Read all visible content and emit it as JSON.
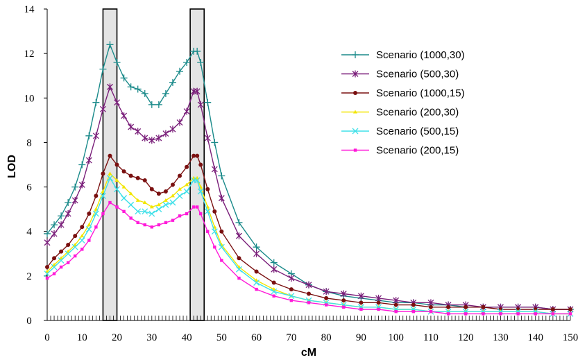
{
  "chart_data": {
    "type": "line",
    "title": "",
    "xlabel": "cM",
    "ylabel": "LOD",
    "xlim": [
      0,
      150
    ],
    "ylim": [
      0,
      14
    ],
    "x_ticks": [
      0,
      10,
      20,
      30,
      40,
      50,
      60,
      70,
      80,
      90,
      100,
      110,
      120,
      130,
      140,
      150
    ],
    "y_ticks": [
      0,
      2,
      4,
      6,
      8,
      10,
      12,
      14
    ],
    "grid": false,
    "legend_position": "top-right",
    "highlight_regions": [
      {
        "from": 16,
        "to": 20
      },
      {
        "from": 41,
        "to": 45
      }
    ],
    "x": [
      0,
      2,
      4,
      6,
      8,
      10,
      12,
      14,
      16,
      18,
      20,
      22,
      24,
      26,
      28,
      30,
      32,
      34,
      36,
      38,
      40,
      42,
      43,
      44,
      46,
      48,
      50,
      55,
      60,
      65,
      70,
      75,
      80,
      85,
      90,
      95,
      100,
      105,
      110,
      115,
      120,
      125,
      130,
      135,
      140,
      145,
      150
    ],
    "series": [
      {
        "name": "Scenario (1000,30)",
        "color": "#1a8a8a",
        "marker": "plus",
        "values": [
          3.9,
          4.3,
          4.7,
          5.3,
          6.0,
          7.0,
          8.3,
          9.8,
          11.3,
          12.4,
          11.6,
          10.9,
          10.5,
          10.4,
          10.2,
          9.7,
          9.7,
          10.2,
          10.7,
          11.2,
          11.6,
          12.1,
          12.1,
          11.6,
          9.8,
          8.0,
          6.5,
          4.4,
          3.3,
          2.6,
          2.1,
          1.6,
          1.3,
          1.1,
          1.0,
          0.9,
          0.8,
          0.8,
          0.7,
          0.7,
          0.6,
          0.6,
          0.6,
          0.6,
          0.6,
          0.5,
          0.5
        ]
      },
      {
        "name": "Scenario (500,30)",
        "color": "#7a1f7a",
        "marker": "star",
        "values": [
          3.5,
          3.9,
          4.3,
          4.8,
          5.4,
          6.1,
          7.2,
          8.3,
          9.5,
          10.5,
          9.8,
          9.2,
          8.7,
          8.5,
          8.2,
          8.1,
          8.2,
          8.4,
          8.6,
          8.9,
          9.4,
          10.3,
          10.3,
          9.7,
          8.2,
          6.8,
          5.5,
          3.8,
          3.0,
          2.3,
          1.9,
          1.6,
          1.3,
          1.2,
          1.1,
          1.0,
          0.9,
          0.8,
          0.8,
          0.7,
          0.7,
          0.6,
          0.6,
          0.6,
          0.6,
          0.5,
          0.5
        ]
      },
      {
        "name": "Scenario (1000,15)",
        "color": "#7a1010",
        "marker": "circle",
        "values": [
          2.4,
          2.8,
          3.1,
          3.4,
          3.8,
          4.2,
          4.8,
          5.6,
          6.6,
          7.4,
          7.0,
          6.7,
          6.5,
          6.4,
          6.3,
          5.9,
          5.7,
          5.8,
          6.1,
          6.5,
          6.9,
          7.4,
          7.4,
          7.0,
          5.9,
          4.9,
          4.0,
          2.8,
          2.2,
          1.7,
          1.4,
          1.2,
          1.0,
          0.9,
          0.8,
          0.8,
          0.7,
          0.7,
          0.6,
          0.6,
          0.6,
          0.6,
          0.5,
          0.5,
          0.5,
          0.5,
          0.5
        ]
      },
      {
        "name": "Scenario (200,30)",
        "color": "#f2e600",
        "marker": "triangle",
        "values": [
          2.2,
          2.5,
          2.8,
          3.1,
          3.4,
          3.8,
          4.3,
          5.0,
          5.8,
          6.6,
          6.3,
          6.0,
          5.7,
          5.4,
          5.3,
          5.1,
          5.2,
          5.4,
          5.6,
          5.9,
          6.1,
          6.4,
          6.4,
          6.0,
          5.1,
          4.2,
          3.4,
          2.4,
          1.8,
          1.4,
          1.1,
          0.9,
          0.8,
          0.7,
          0.6,
          0.6,
          0.5,
          0.5,
          0.4,
          0.4,
          0.4,
          0.4,
          0.4,
          0.4,
          0.4,
          0.3,
          0.3
        ]
      },
      {
        "name": "Scenario (500,15)",
        "color": "#3fe0e8",
        "marker": "x",
        "values": [
          2.1,
          2.4,
          2.7,
          3.0,
          3.3,
          3.6,
          4.1,
          4.8,
          5.6,
          6.4,
          5.9,
          5.5,
          5.2,
          4.9,
          4.9,
          4.8,
          5.0,
          5.2,
          5.3,
          5.6,
          5.8,
          6.3,
          6.3,
          5.8,
          4.9,
          4.0,
          3.3,
          2.3,
          1.7,
          1.3,
          1.1,
          0.9,
          0.8,
          0.7,
          0.6,
          0.6,
          0.5,
          0.5,
          0.4,
          0.4,
          0.4,
          0.4,
          0.4,
          0.4,
          0.4,
          0.3,
          0.3
        ]
      },
      {
        "name": "Scenario (200,15)",
        "color": "#ff1ad9",
        "marker": "square",
        "values": [
          1.9,
          2.1,
          2.4,
          2.6,
          2.9,
          3.2,
          3.6,
          4.2,
          4.8,
          5.3,
          5.1,
          4.9,
          4.6,
          4.4,
          4.3,
          4.2,
          4.3,
          4.4,
          4.5,
          4.7,
          4.8,
          5.1,
          5.1,
          4.8,
          4.0,
          3.3,
          2.7,
          1.9,
          1.4,
          1.1,
          0.9,
          0.8,
          0.7,
          0.6,
          0.5,
          0.5,
          0.4,
          0.4,
          0.4,
          0.3,
          0.3,
          0.3,
          0.3,
          0.3,
          0.3,
          0.3,
          0.3
        ]
      }
    ]
  }
}
